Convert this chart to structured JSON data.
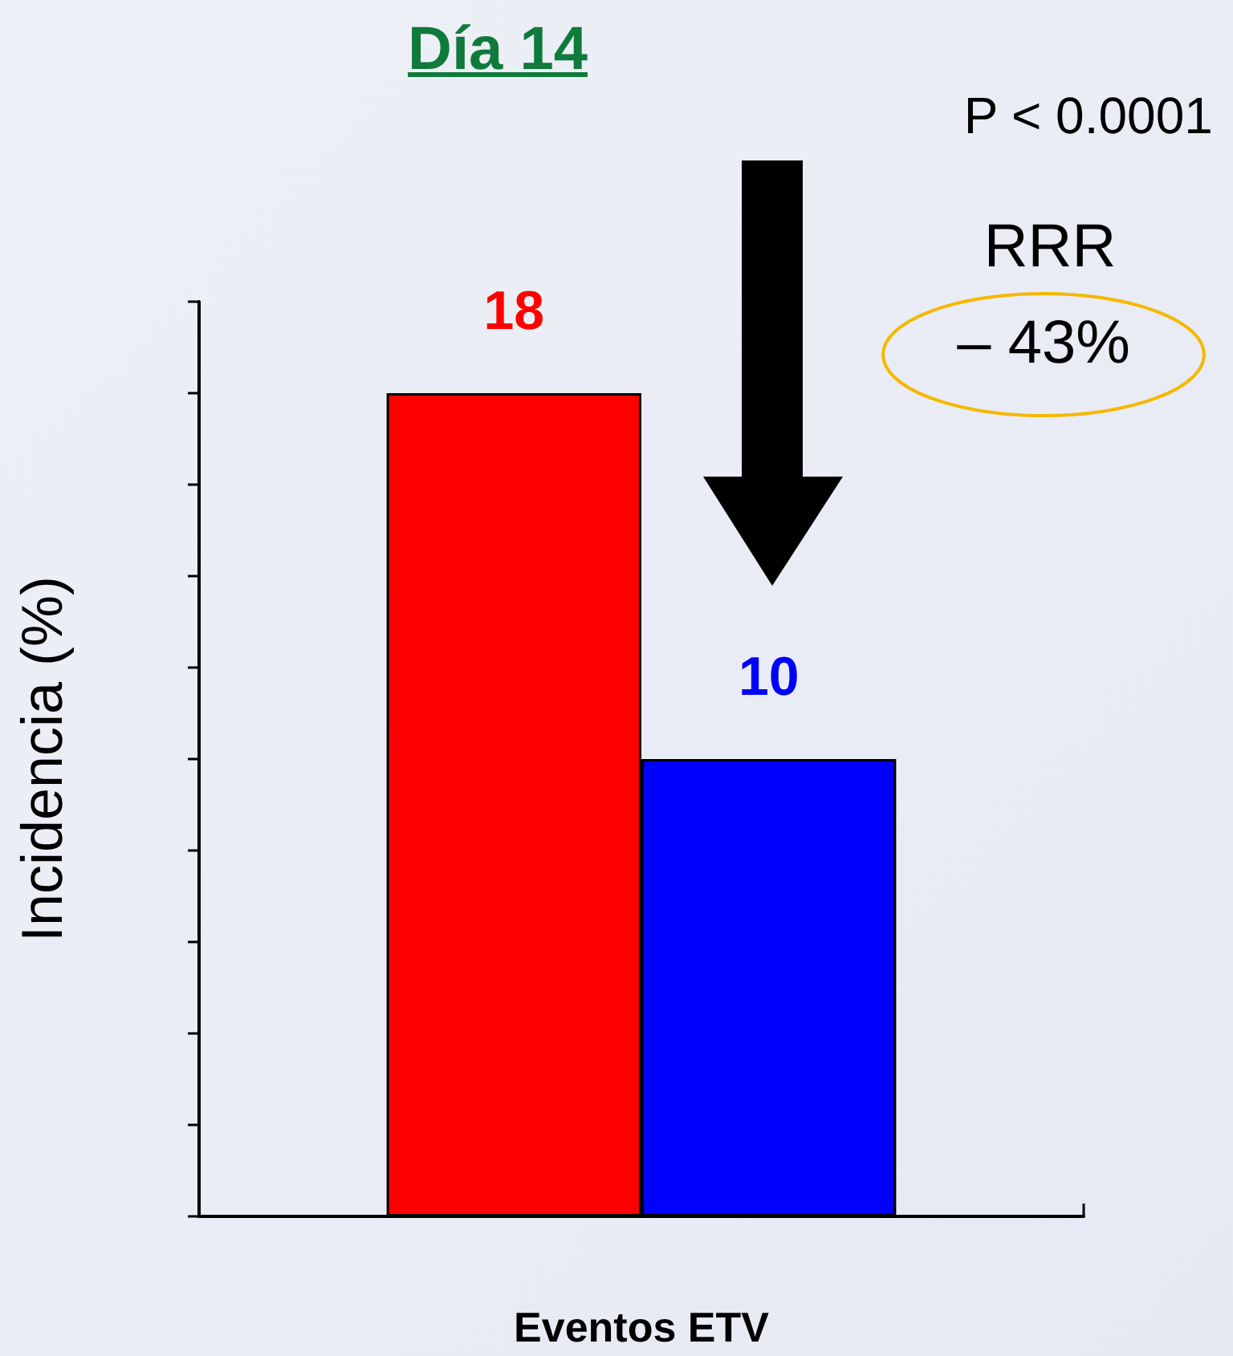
{
  "chart_data": {
    "type": "bar",
    "title": "Día 14",
    "xlabel": "Eventos ETV",
    "ylabel": "Incidencia (%)",
    "categories": [
      null
    ],
    "series": [
      {
        "color": "#ff0000",
        "values": [
          18
        ]
      },
      {
        "color": "#0000ff",
        "values": [
          10
        ]
      }
    ],
    "ylim": [
      0,
      20
    ],
    "yticks": [
      {
        "value": 0,
        "label": null
      },
      {
        "value": 2,
        "label": null
      },
      {
        "value": 4,
        "label": null
      },
      {
        "value": 6,
        "label": null
      },
      {
        "value": 8,
        "label": null
      },
      {
        "value": 10,
        "label": null
      },
      {
        "value": 12,
        "label": null
      },
      {
        "value": 14,
        "label": null
      },
      {
        "value": 16,
        "label": null
      },
      {
        "value": 18,
        "label": null
      },
      {
        "value": 20,
        "label": null
      }
    ],
    "data_labels": true,
    "grid": false,
    "annotations": [
      "P < 0.0001",
      "RRR",
      "– 43%"
    ]
  }
}
